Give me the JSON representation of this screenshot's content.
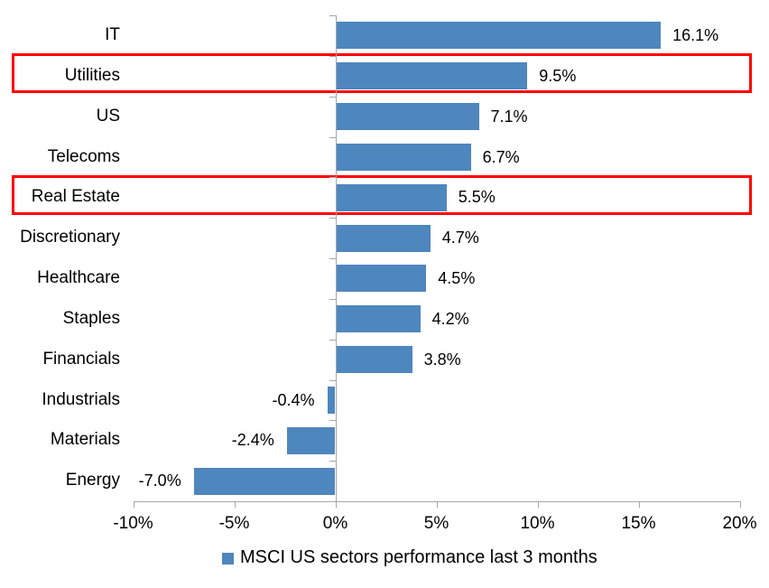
{
  "chart_data": {
    "type": "bar",
    "orientation": "horizontal",
    "title": "",
    "categories": [
      "IT",
      "Utilities",
      "US",
      "Telecoms",
      "Real Estate",
      "Discretionary",
      "Healthcare",
      "Staples",
      "Financials",
      "Industrials",
      "Materials",
      "Energy"
    ],
    "values": [
      16.1,
      9.5,
      7.1,
      6.7,
      5.5,
      4.7,
      4.5,
      4.2,
      3.8,
      -0.4,
      -2.4,
      -7.0
    ],
    "data_labels": [
      "16.1%",
      "9.5%",
      "7.1%",
      "6.7%",
      "5.5%",
      "4.7%",
      "4.5%",
      "4.2%",
      "3.8%",
      "-0.4%",
      "-2.4%",
      "-7.0%"
    ],
    "highlighted_categories": [
      "Utilities",
      "Real Estate"
    ],
    "x_axis": {
      "min": -10,
      "max": 20,
      "tick_interval": 5,
      "tick_labels": [
        "-10%",
        "-5%",
        "0%",
        "5%",
        "10%",
        "15%",
        "20%"
      ]
    },
    "grid": false,
    "legend": {
      "position": "bottom",
      "label": "MSCI US sectors performance last 3 months"
    },
    "colors": {
      "bar": "#4E86BE",
      "highlight_border": "#FF0000",
      "axis": "#A6A6A6",
      "text": "#000000"
    }
  }
}
